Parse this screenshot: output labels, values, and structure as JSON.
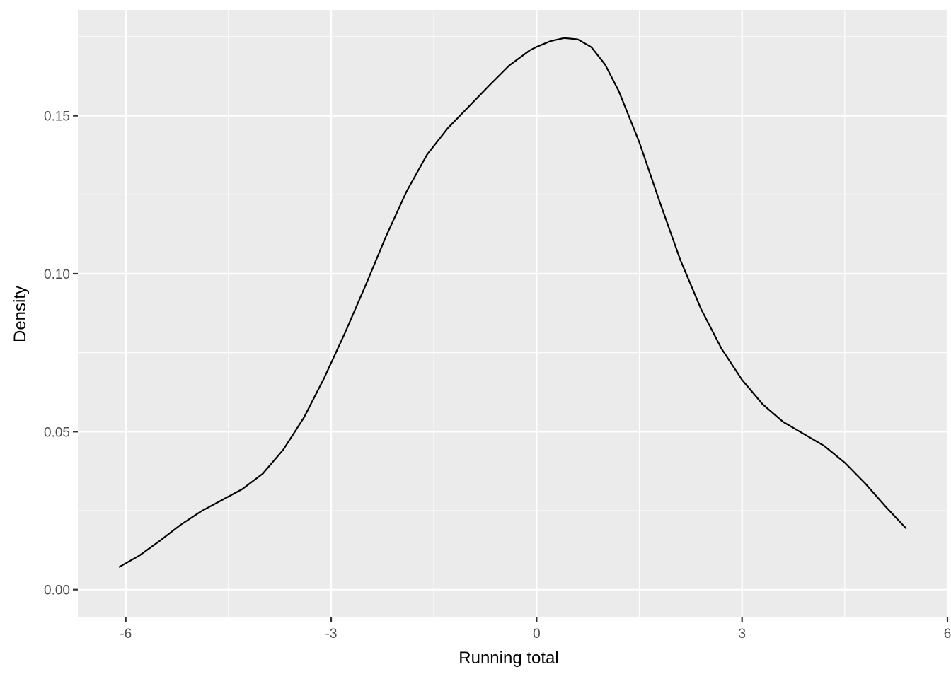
{
  "chart_data": {
    "type": "line",
    "title": "",
    "xlabel": "Running total",
    "ylabel": "Density",
    "xlim": [
      -6.7,
      6.0
    ],
    "ylim": [
      -0.0088,
      0.1835
    ],
    "x_ticks": [
      -6,
      -3,
      0,
      3,
      6
    ],
    "x_tick_labels": [
      "-6",
      "-3",
      "0",
      "3",
      "6"
    ],
    "y_ticks": [
      0.0,
      0.05,
      0.1,
      0.15
    ],
    "y_tick_labels": [
      "0.00",
      "0.05",
      "0.10",
      "0.15"
    ],
    "x_minor": [
      -4.5,
      -1.5,
      1.5,
      4.5
    ],
    "y_minor": [
      0.025,
      0.075,
      0.125,
      0.175
    ],
    "grid": true,
    "legend": "none",
    "line_color": "#000000",
    "panel_color": "#ebebeb",
    "series": [
      {
        "x": [
          -6.1,
          -5.8,
          -5.5,
          -5.2,
          -4.9,
          -4.6,
          -4.3,
          -4.0,
          -3.7,
          -3.4,
          -3.1,
          -2.8,
          -2.5,
          -2.2,
          -1.9,
          -1.6,
          -1.3,
          -1.0,
          -0.7,
          -0.4,
          -0.1,
          0.0,
          0.2,
          0.4,
          0.6,
          0.8,
          1.0,
          1.2,
          1.5,
          1.8,
          2.1,
          2.4,
          2.7,
          3.0,
          3.3,
          3.6,
          3.9,
          4.2,
          4.5,
          4.8,
          5.1,
          5.4
        ],
        "y": [
          0.0071,
          0.0108,
          0.0155,
          0.0205,
          0.0248,
          0.0283,
          0.0318,
          0.0367,
          0.0443,
          0.0544,
          0.0671,
          0.0812,
          0.0962,
          0.1118,
          0.126,
          0.1377,
          0.146,
          0.1527,
          0.1594,
          0.1659,
          0.1707,
          0.1718,
          0.1736,
          0.1746,
          0.1742,
          0.1717,
          0.1662,
          0.1578,
          0.1416,
          0.1226,
          0.1043,
          0.0889,
          0.0763,
          0.0664,
          0.0587,
          0.0531,
          0.0493,
          0.0455,
          0.0402,
          0.0336,
          0.0262,
          0.0193
        ]
      }
    ]
  }
}
